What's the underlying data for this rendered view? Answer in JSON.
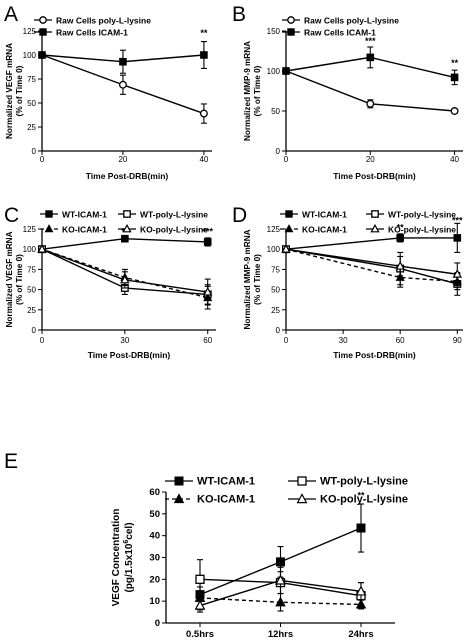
{
  "chart_data": [
    {
      "panel": "A",
      "type": "line",
      "xlabel": "Time Post-DRB(min)",
      "ylabel": [
        "Normalized VEGF mRNA",
        "(% of Time 0)"
      ],
      "x": [
        0,
        20,
        40
      ],
      "xlim": [
        0,
        42
      ],
      "ylim": [
        0,
        125
      ],
      "xticks": [
        0,
        20,
        40
      ],
      "yticks": [
        0,
        25,
        50,
        75,
        100,
        125
      ],
      "legend_position": "top-left",
      "series": [
        {
          "name": "Raw Cells poly-L-lysine",
          "marker": "open-circle",
          "dash": "solid",
          "values": [
            100,
            69,
            39
          ],
          "errors": [
            0,
            10,
            10
          ]
        },
        {
          "name": "Raw Cells ICAM-1",
          "marker": "filled-square",
          "dash": "solid",
          "values": [
            100,
            93,
            100
          ],
          "errors": [
            0,
            12,
            14
          ]
        }
      ],
      "annotations": [
        {
          "x": 40,
          "y": 120,
          "text": "**"
        }
      ]
    },
    {
      "panel": "B",
      "type": "line",
      "xlabel": "Time Post-DRB(min)",
      "ylabel": [
        "Normalized MMP-9 mRNA",
        "(% of Time 0)"
      ],
      "x": [
        0,
        20,
        40
      ],
      "xlim": [
        0,
        42
      ],
      "ylim": [
        0,
        150
      ],
      "xticks": [
        0,
        20,
        40
      ],
      "yticks": [
        0,
        50,
        100,
        150
      ],
      "legend_position": "top-left",
      "series": [
        {
          "name": "Raw Cells poly-L-lysine",
          "marker": "open-circle",
          "dash": "solid",
          "values": [
            100,
            59,
            50
          ],
          "errors": [
            0,
            5,
            3
          ]
        },
        {
          "name": "Raw Cells ICAM-1",
          "marker": "filled-square",
          "dash": "solid",
          "values": [
            100,
            117,
            92
          ],
          "errors": [
            0,
            13,
            9
          ]
        }
      ],
      "annotations": [
        {
          "x": 20,
          "y": 134,
          "text": "***"
        },
        {
          "x": 40,
          "y": 106,
          "text": "**"
        }
      ]
    },
    {
      "panel": "C",
      "type": "line",
      "xlabel": "Time Post-DRB(min)",
      "ylabel": [
        "Normalized VEGF mRNA",
        "(% of Time 0)"
      ],
      "x": [
        0,
        30,
        60
      ],
      "xlim": [
        0,
        63
      ],
      "ylim": [
        0,
        125
      ],
      "xticks": [
        0,
        30,
        60
      ],
      "yticks": [
        0,
        25,
        50,
        75,
        100,
        125
      ],
      "legend_position": "top",
      "series": [
        {
          "name": "WT-ICAM-1",
          "marker": "filled-square",
          "dash": "solid",
          "values": [
            100,
            113,
            109
          ],
          "errors": [
            0,
            2,
            5
          ]
        },
        {
          "name": "WT-poly-L-lysine",
          "marker": "open-square",
          "dash": "solid",
          "values": [
            100,
            52,
            44
          ],
          "errors": [
            0,
            8,
            12
          ]
        },
        {
          "name": "KO-ICAM-1",
          "marker": "filled-triangle",
          "dash": "dashed",
          "values": [
            100,
            65,
            40
          ],
          "errors": [
            0,
            10,
            14
          ]
        },
        {
          "name": "KO-poly-L-lysine",
          "marker": "open-triangle",
          "dash": "solid",
          "values": [
            100,
            62,
            47
          ],
          "errors": [
            0,
            10,
            16
          ]
        }
      ],
      "annotations": [
        {
          "x": 30,
          "y": 118,
          "text": "**"
        },
        {
          "x": 60,
          "y": 118,
          "text": "***"
        }
      ]
    },
    {
      "panel": "D",
      "type": "line",
      "xlabel": "Time Post-DRB(min)",
      "ylabel": [
        "Normalized MMP-9 mRNA",
        "(% of Time 0)"
      ],
      "x": [
        0,
        60,
        90
      ],
      "xlim": [
        0,
        93
      ],
      "ylim": [
        0,
        125
      ],
      "xticks": [
        0,
        30,
        60,
        90
      ],
      "yticks": [
        0,
        25,
        50,
        75,
        100,
        125
      ],
      "legend_position": "top",
      "series": [
        {
          "name": "WT-ICAM-1",
          "marker": "filled-square",
          "dash": "solid",
          "values": [
            100,
            114,
            114
          ],
          "errors": [
            0,
            5,
            18
          ]
        },
        {
          "name": "WT-poly-L-lysine",
          "marker": "open-square",
          "dash": "solid",
          "values": [
            100,
            76,
            57
          ],
          "errors": [
            0,
            20,
            14
          ]
        },
        {
          "name": "KO-ICAM-1",
          "marker": "filled-triangle",
          "dash": "dashed",
          "values": [
            100,
            65,
            60
          ],
          "errors": [
            0,
            12,
            10
          ]
        },
        {
          "name": "KO-poly-L-lysine",
          "marker": "open-triangle",
          "dash": "solid",
          "values": [
            100,
            79,
            69
          ],
          "errors": [
            0,
            12,
            14
          ]
        }
      ],
      "annotations": [
        {
          "x": 60,
          "y": 123,
          "text": "**"
        },
        {
          "x": 90,
          "y": 132,
          "text": "***"
        }
      ]
    },
    {
      "panel": "E",
      "type": "line",
      "xlabel": "",
      "ylabel": [
        "VEGF Concentration",
        "(pg/1.5x10",
        "6",
        "cel)"
      ],
      "categories": [
        "0.5hrs",
        "12hrs",
        "24hrs"
      ],
      "ylim": [
        0,
        60
      ],
      "yticks": [
        0,
        10,
        20,
        30,
        40,
        50,
        60
      ],
      "legend_position": "top",
      "series": [
        {
          "name": "WT-ICAM-1",
          "marker": "filled-square",
          "dash": "solid",
          "values": [
            13,
            28,
            43.5
          ],
          "errors": [
            7,
            7,
            11
          ]
        },
        {
          "name": "WT-poly-L-lysine",
          "marker": "open-square",
          "dash": "solid",
          "values": [
            20,
            18.5,
            12.5
          ],
          "errors": [
            9,
            5,
            6
          ]
        },
        {
          "name": "KO-ICAM-1",
          "marker": "filled-triangle",
          "dash": "dashed",
          "values": [
            11.5,
            9.5,
            8.5
          ],
          "errors": [
            5,
            4,
            2
          ]
        },
        {
          "name": "KO-poly-L-lysine",
          "marker": "open-triangle",
          "dash": "solid",
          "values": [
            8,
            19.5,
            14.5
          ],
          "errors": [
            3,
            6,
            4
          ]
        }
      ],
      "annotations": [
        {
          "x": "24hrs",
          "y": 57,
          "text": "**"
        }
      ]
    }
  ]
}
